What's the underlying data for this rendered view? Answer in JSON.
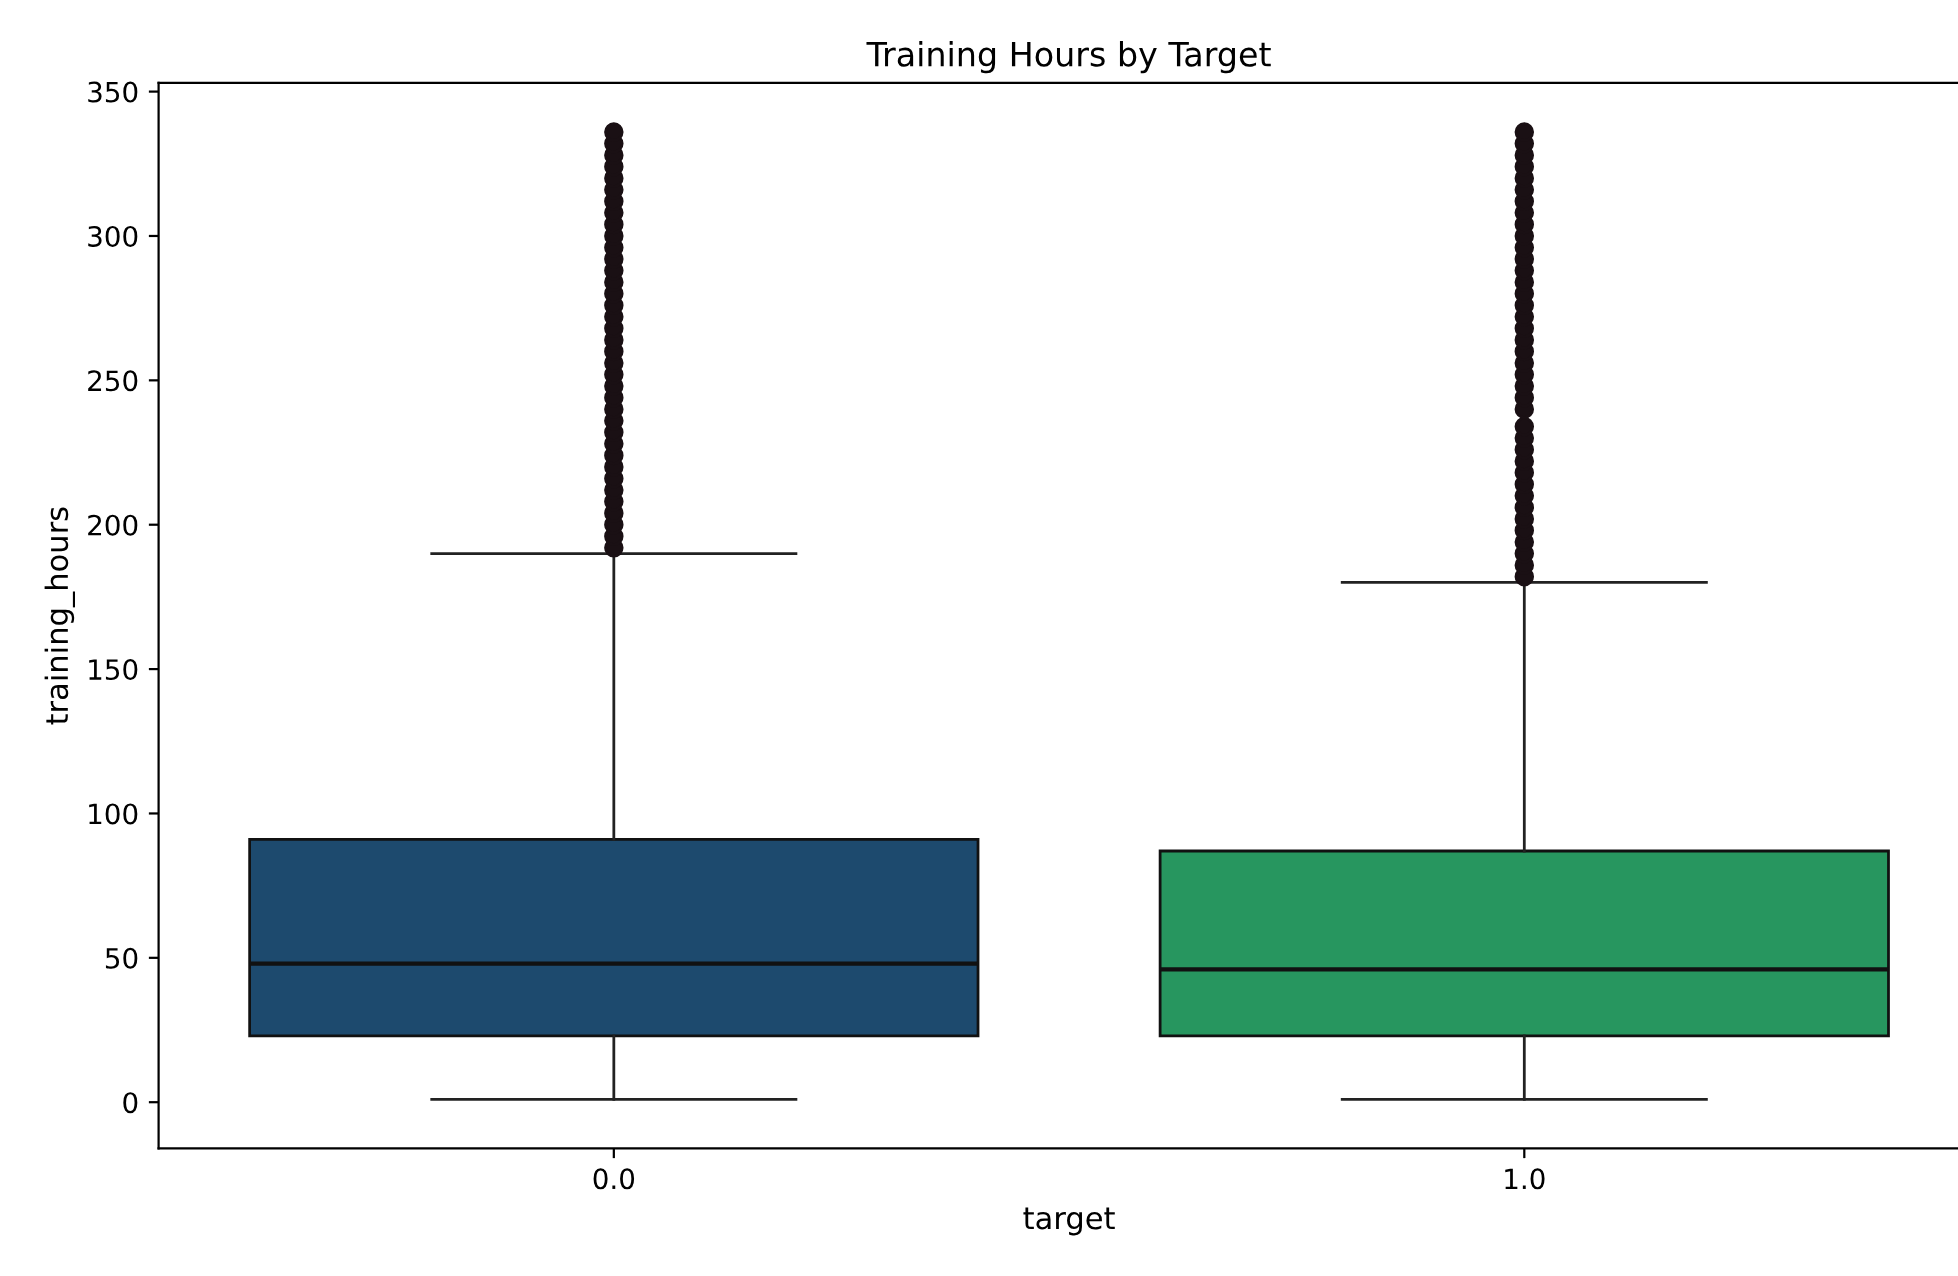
{
  "chart_data": {
    "type": "box",
    "title": "Training Hours by Target",
    "xlabel": "target",
    "ylabel": "training_hours",
    "categories": [
      "0.0",
      "1.0"
    ],
    "colors": [
      "#1d4a6e",
      "#27965f"
    ],
    "boxes": [
      {
        "low": 1,
        "q1": 23,
        "median": 48,
        "q3": 91,
        "high": 190,
        "outliers": [
          192,
          196,
          200,
          204,
          208,
          212,
          216,
          220,
          224,
          228,
          232,
          236,
          240,
          244,
          248,
          252,
          256,
          260,
          264,
          268,
          272,
          276,
          280,
          284,
          288,
          292,
          296,
          300,
          304,
          308,
          312,
          316,
          320,
          324,
          328,
          332,
          336
        ]
      },
      {
        "low": 1,
        "q1": 23,
        "median": 46,
        "q3": 87,
        "high": 180,
        "outliers": [
          182,
          186,
          190,
          194,
          198,
          202,
          206,
          210,
          214,
          218,
          222,
          226,
          230,
          234,
          240,
          244,
          248,
          252,
          256,
          260,
          264,
          268,
          272,
          276,
          280,
          284,
          288,
          292,
          296,
          300,
          304,
          308,
          312,
          316,
          320,
          324,
          328,
          332,
          336
        ]
      }
    ],
    "ylim": [
      -16,
      353
    ],
    "yticks": [
      0,
      50,
      100,
      150,
      200,
      250,
      300,
      350
    ],
    "grid": false
  }
}
